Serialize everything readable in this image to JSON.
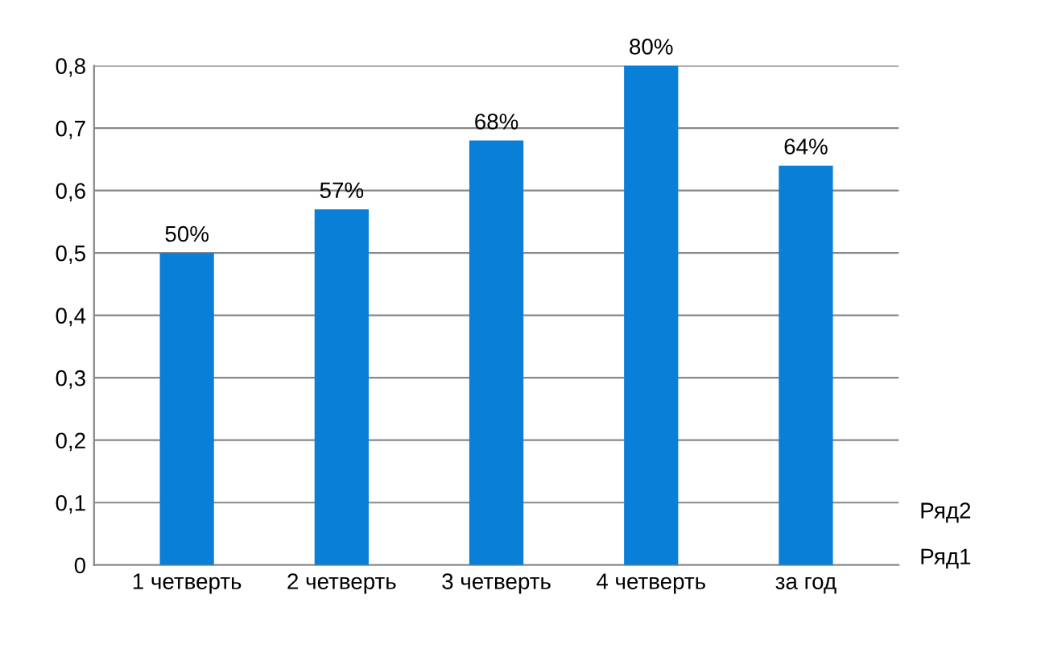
{
  "chart_data": {
    "type": "bar",
    "categories": [
      "1 четверть",
      "2 четверть",
      "3 четверть",
      "4 четверть",
      "за год"
    ],
    "series": [
      {
        "color": "#0a7fd8",
        "values": [
          0.5,
          0.57,
          0.68,
          0.8,
          0.64
        ],
        "value_labels": [
          "50%",
          "57%",
          "68%",
          "80%",
          "64%"
        ]
      }
    ],
    "ylim": [
      0,
      0.8
    ],
    "yticks": [
      0,
      {
        "value": 0.1,
        "label": "0,1"
      },
      {
        "value": 0.2,
        "label": "0,2"
      },
      {
        "value": 0.3,
        "label": "0,3"
      },
      {
        "value": 0.4,
        "label": "0,4"
      },
      {
        "value": 0.5,
        "label": "0,5"
      },
      {
        "value": 0.6,
        "label": "0,6"
      },
      {
        "value": 0.7,
        "label": "0,7"
      },
      {
        "value": 0.8,
        "label": "0,8"
      }
    ],
    "grid": "y",
    "legend": false,
    "annotations": [
      "Ряд2",
      "Ряд1"
    ]
  }
}
